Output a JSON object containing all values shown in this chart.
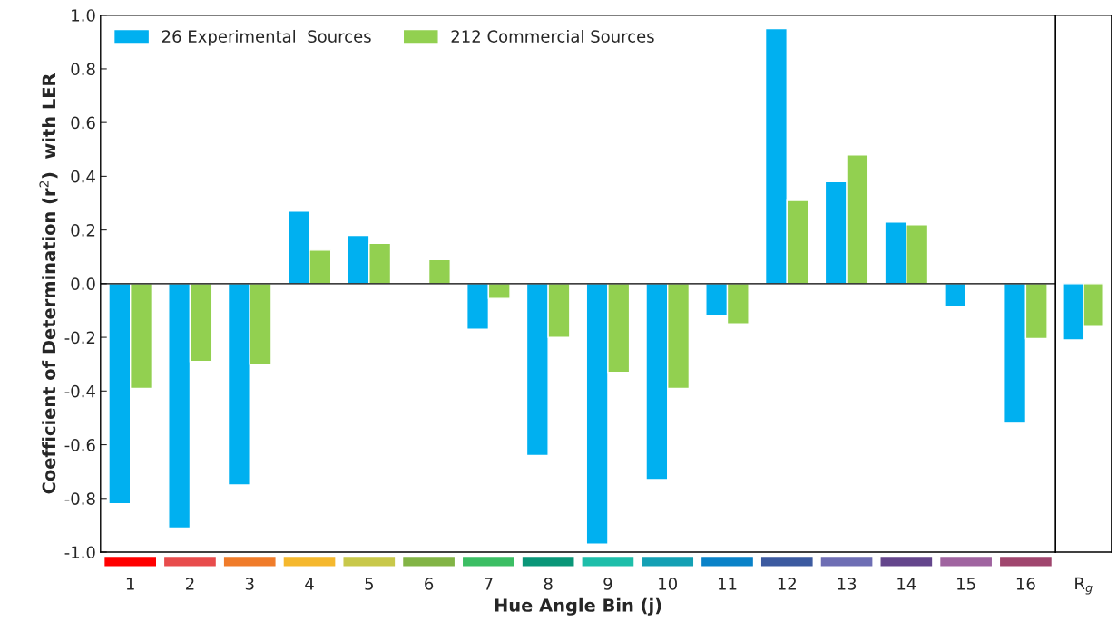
{
  "chart_data": [
    {
      "type": "bar",
      "xlabel": "Hue Angle Bin (j)",
      "ylabel": "Coefficient of Determination (r$^{2}$)  with LER",
      "categories": [
        "1",
        "2",
        "3",
        "4",
        "5",
        "6",
        "7",
        "8",
        "9",
        "10",
        "11",
        "12",
        "13",
        "14",
        "15",
        "16"
      ],
      "series": [
        {
          "name": "26 Experimental  Sources",
          "color": "#00b0f0",
          "values": [
            -0.82,
            -0.91,
            -0.75,
            0.27,
            0.18,
            null,
            -0.17,
            -0.64,
            -0.97,
            -0.73,
            -0.12,
            0.95,
            0.38,
            0.23,
            -0.085,
            -0.52
          ]
        },
        {
          "name": "212 Commercial Sources",
          "color": "#92d050",
          "values": [
            -0.39,
            -0.29,
            -0.3,
            0.125,
            0.15,
            0.09,
            -0.055,
            -0.2,
            -0.33,
            -0.39,
            -0.15,
            0.31,
            0.48,
            0.22,
            null,
            -0.205
          ]
        }
      ],
      "ylim": [
        -1.0,
        1.0
      ],
      "yticks": [
        {
          "value": -1.0,
          "label": "-1.0"
        },
        {
          "value": -0.8,
          "label": "-0.8"
        },
        {
          "value": -0.6,
          "label": "-0.6"
        },
        {
          "value": -0.4,
          "label": "-0.4"
        },
        {
          "value": -0.2,
          "label": "-0.2"
        },
        {
          "value": 0.0,
          "label": "0.0"
        },
        {
          "value": 0.2,
          "label": "0.2"
        },
        {
          "value": 0.4,
          "label": "0.4"
        },
        {
          "value": 0.6,
          "label": "0.6"
        },
        {
          "value": 0.8,
          "label": "0.8"
        },
        {
          "value": 1.0,
          "label": "1.0"
        }
      ],
      "ref_lines": [
        {
          "axis": "y",
          "value": 0
        }
      ],
      "legend": "top left"
    },
    {
      "type": "bar",
      "categories": [
        "R$_{g}$"
      ],
      "series": [
        {
          "color": "#00b0f0",
          "values": [
            -0.21
          ]
        },
        {
          "color": "#92d050",
          "values": [
            -0.16
          ]
        }
      ],
      "ylim": [
        -1.0,
        1.0
      ]
    }
  ]
}
